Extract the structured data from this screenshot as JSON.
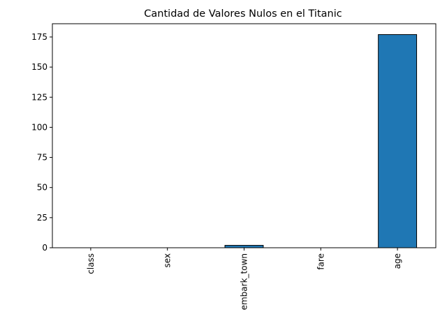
{
  "chart_data": {
    "type": "bar",
    "title": "Cantidad de Valores Nulos en el Titanic",
    "xlabel": "",
    "ylabel": "",
    "categories": [
      "class",
      "sex",
      "embark_town",
      "fare",
      "age"
    ],
    "values": [
      0,
      0,
      2,
      0,
      177
    ],
    "ylim": [
      0,
      186
    ],
    "yticks": [
      0,
      25,
      50,
      75,
      100,
      125,
      150,
      175
    ],
    "bar_color": "#1f77b4",
    "bar_edge_color": "#000000",
    "grid": false,
    "legend": "none"
  }
}
